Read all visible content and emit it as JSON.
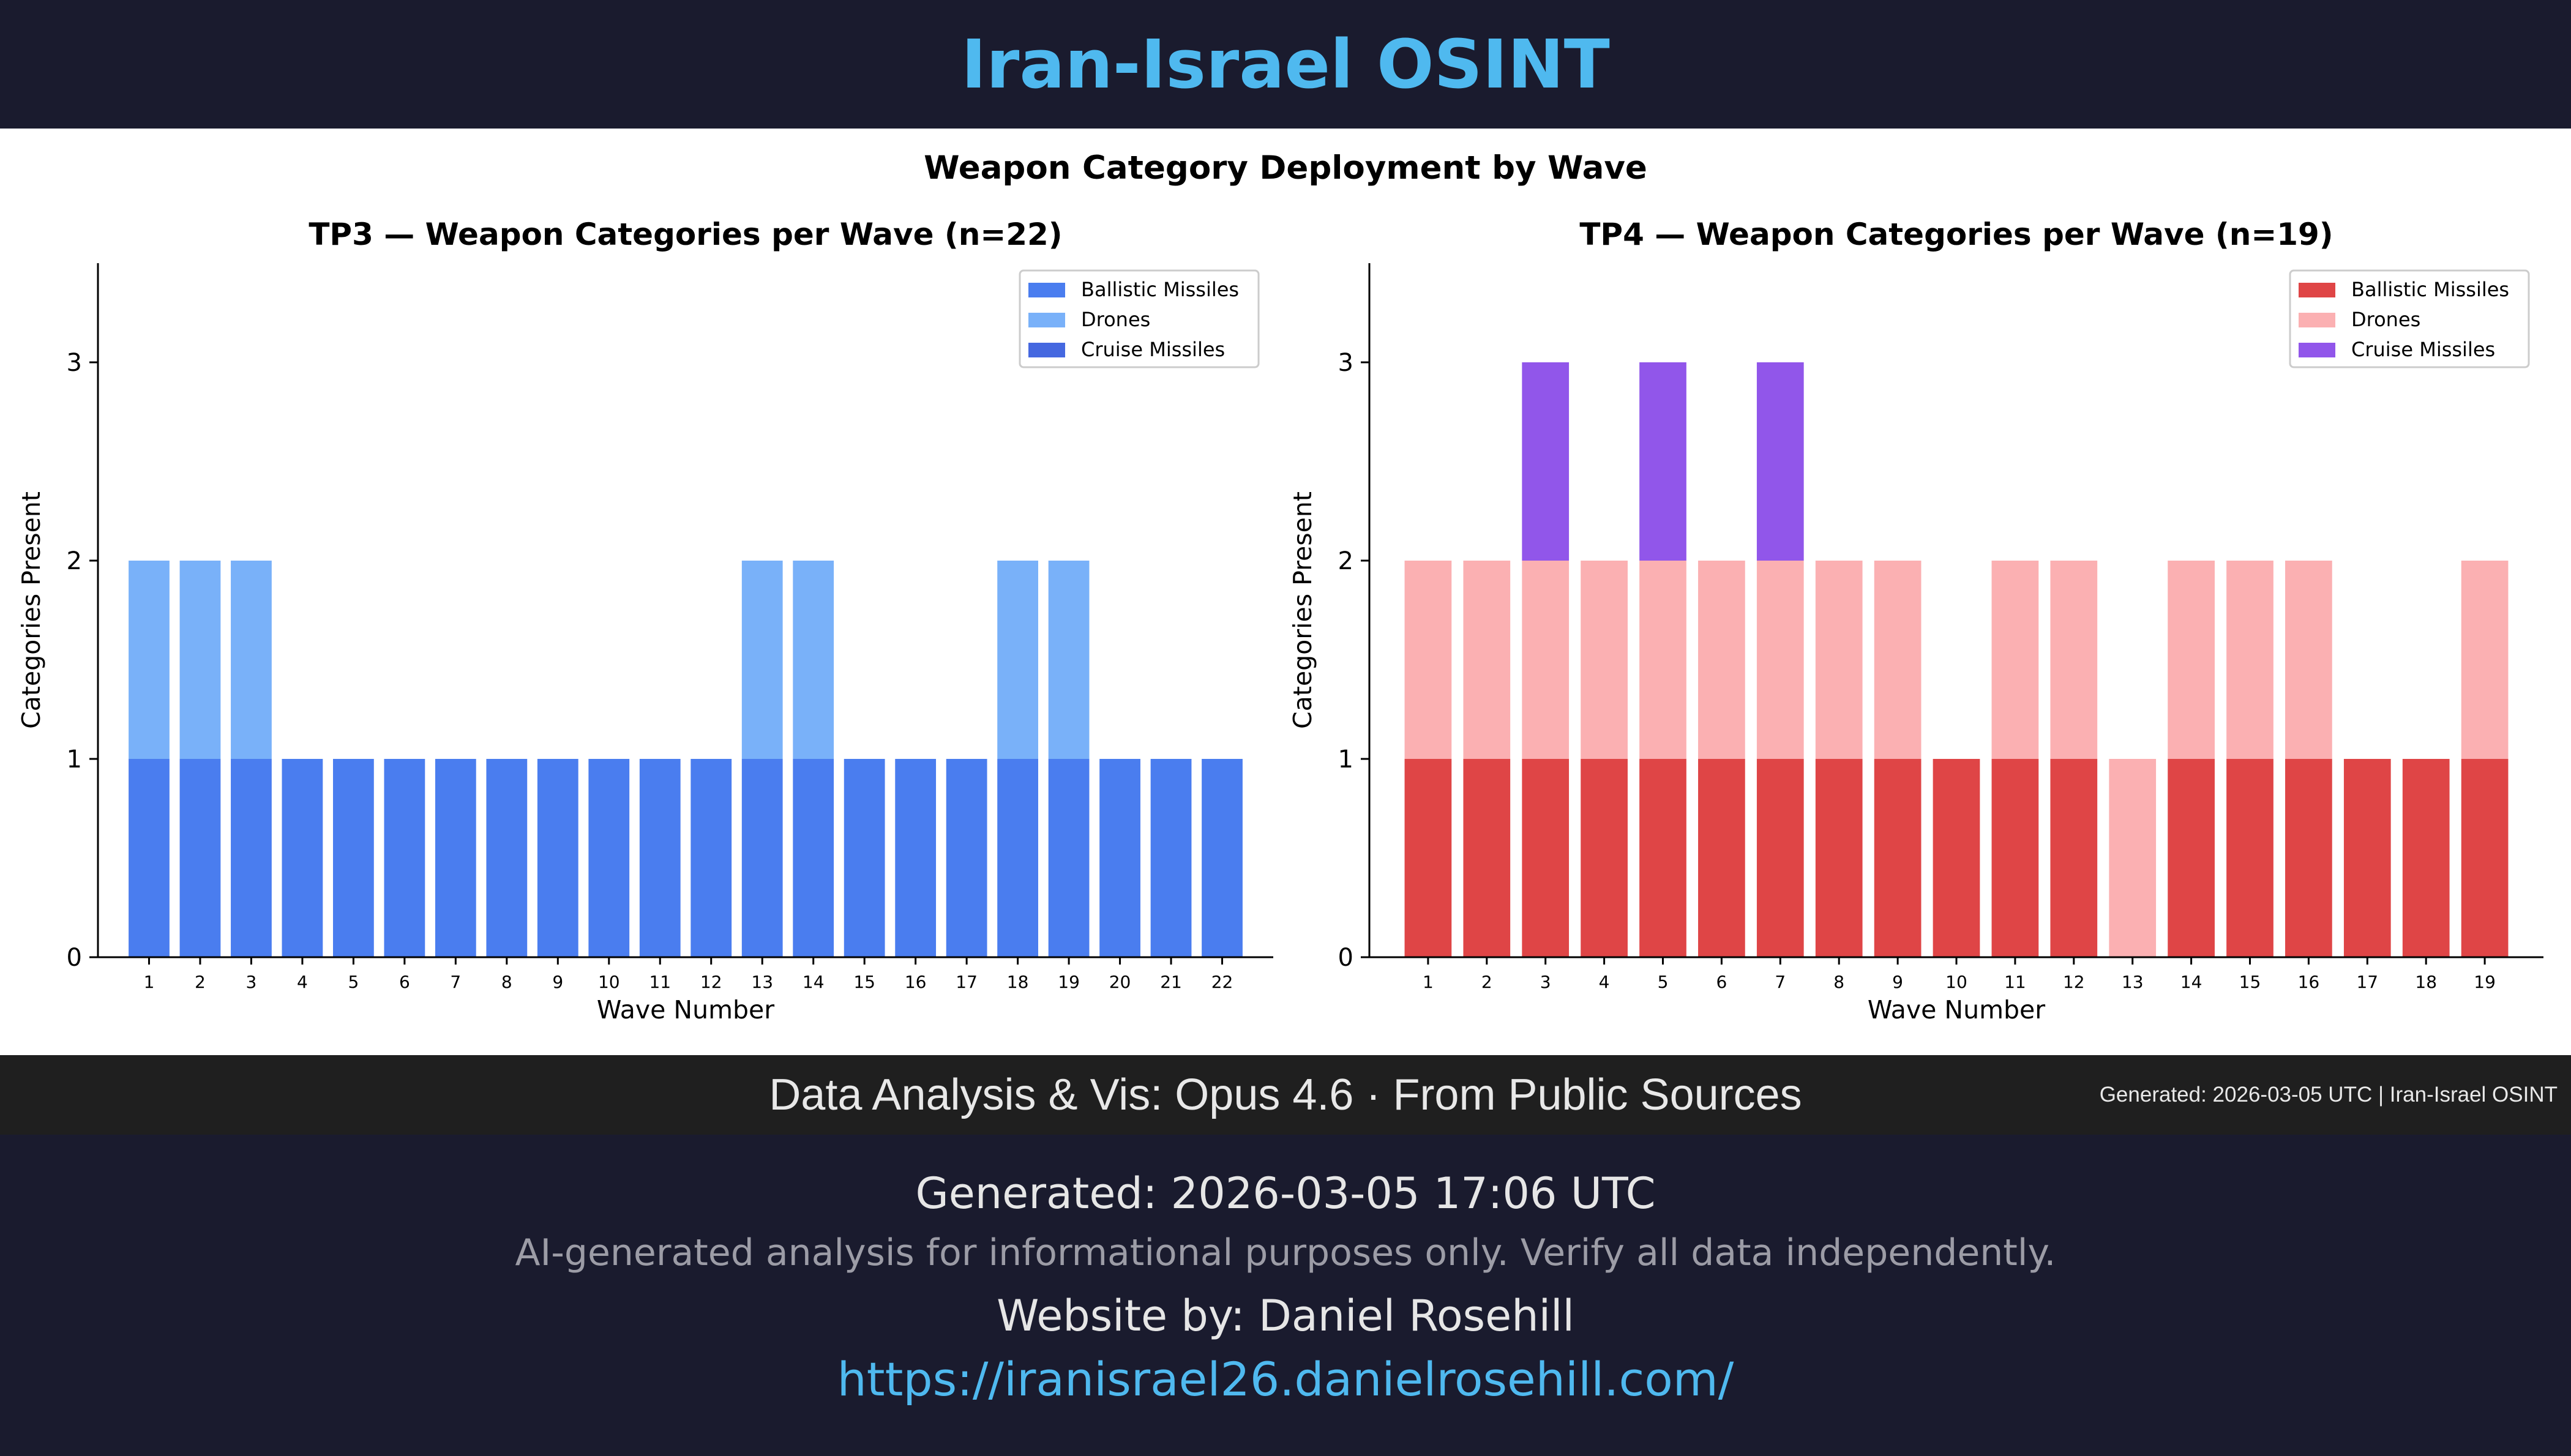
{
  "header": {
    "title": "Iran-Israel OSINT"
  },
  "figure": {
    "suptitle": "Weapon Category Deployment by Wave"
  },
  "chart_data": [
    {
      "type": "bar",
      "stacked": true,
      "title": "TP3 — Weapon Categories per Wave (n=22)",
      "xlabel": "Wave Number",
      "ylabel": "Categories Present",
      "ylim": [
        0,
        3.5
      ],
      "yticks": [
        0,
        1,
        2,
        3
      ],
      "categories": [
        "1",
        "2",
        "3",
        "4",
        "5",
        "6",
        "7",
        "8",
        "9",
        "10",
        "11",
        "12",
        "13",
        "14",
        "15",
        "16",
        "17",
        "18",
        "19",
        "20",
        "21",
        "22"
      ],
      "legend_position": "top-right",
      "series": [
        {
          "name": "Ballistic Missiles",
          "color": "#4a7def",
          "values": [
            1,
            1,
            1,
            1,
            1,
            1,
            1,
            1,
            1,
            1,
            1,
            1,
            1,
            1,
            1,
            1,
            1,
            1,
            1,
            1,
            1,
            1
          ]
        },
        {
          "name": "Drones",
          "color": "#79b1f9",
          "values": [
            1,
            1,
            1,
            0,
            0,
            0,
            0,
            0,
            0,
            0,
            0,
            0,
            1,
            1,
            0,
            0,
            0,
            1,
            1,
            0,
            0,
            0
          ]
        },
        {
          "name": "Cruise Missiles",
          "color": "#4568e0",
          "values": [
            0,
            0,
            0,
            0,
            0,
            0,
            0,
            0,
            0,
            0,
            0,
            0,
            0,
            0,
            0,
            0,
            0,
            0,
            0,
            0,
            0,
            0
          ]
        }
      ]
    },
    {
      "type": "bar",
      "stacked": true,
      "title": "TP4 — Weapon Categories per Wave (n=19)",
      "xlabel": "Wave Number",
      "ylabel": "Categories Present",
      "ylim": [
        0,
        3.5
      ],
      "yticks": [
        0,
        1,
        2,
        3
      ],
      "categories": [
        "1",
        "2",
        "3",
        "4",
        "5",
        "6",
        "7",
        "8",
        "9",
        "10",
        "11",
        "12",
        "13",
        "14",
        "15",
        "16",
        "17",
        "18",
        "19"
      ],
      "legend_position": "top-right",
      "series": [
        {
          "name": "Ballistic Missiles",
          "color": "#df4546",
          "values": [
            1,
            1,
            1,
            1,
            1,
            1,
            1,
            1,
            1,
            1,
            1,
            1,
            0,
            1,
            1,
            1,
            1,
            1,
            1
          ]
        },
        {
          "name": "Drones",
          "color": "#fbb0b2",
          "values": [
            1,
            1,
            1,
            1,
            1,
            1,
            1,
            1,
            1,
            0,
            1,
            1,
            1,
            1,
            1,
            1,
            0,
            0,
            1
          ]
        },
        {
          "name": "Cruise Missiles",
          "color": "#9156ea",
          "values": [
            0,
            0,
            1,
            0,
            1,
            0,
            1,
            0,
            0,
            0,
            0,
            0,
            0,
            0,
            0,
            0,
            0,
            0,
            0
          ]
        }
      ]
    }
  ],
  "banner": {
    "main": "Data Analysis & Vis: Opus 4.6 · From Public Sources",
    "right": "Generated: 2026-03-05 UTC | Iran-Israel OSINT"
  },
  "footer": {
    "generated": "Generated: 2026-03-05 17:06 UTC",
    "disclaimer": "AI-generated analysis for informational purposes only. Verify all data independently.",
    "website_by": "Website by: Daniel Rosehill",
    "url": "https://iranisrael26.danielrosehill.com/"
  }
}
